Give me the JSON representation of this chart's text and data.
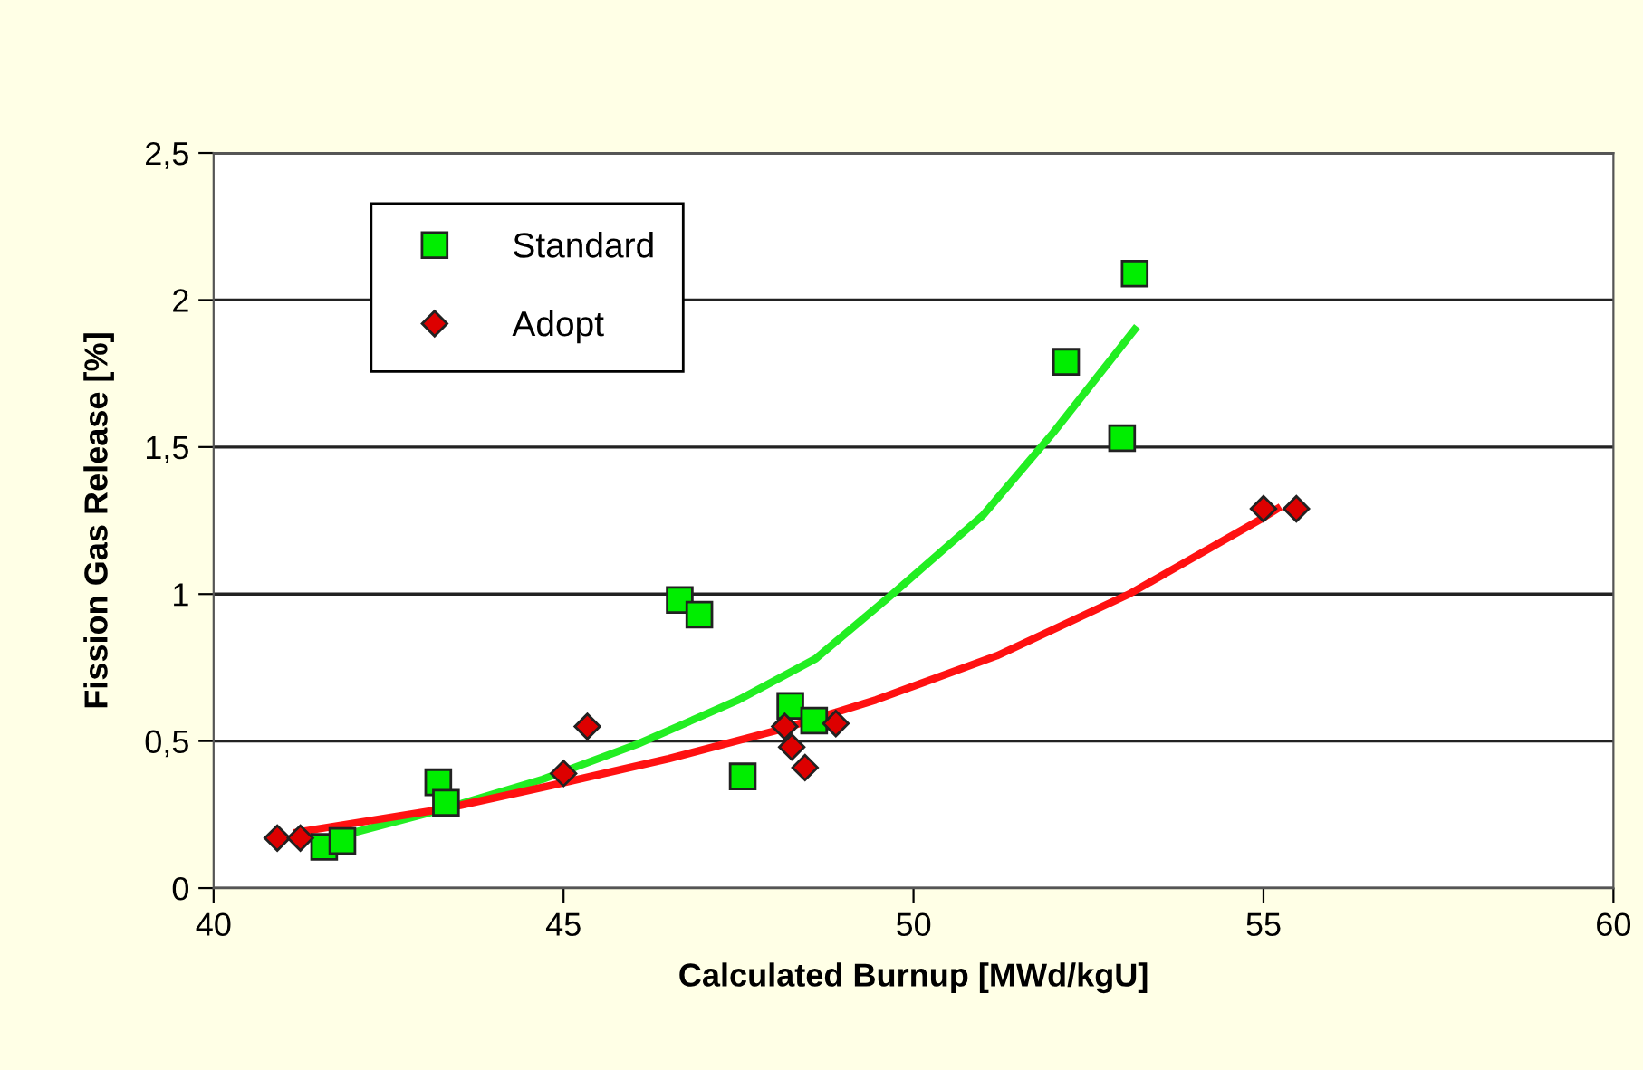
{
  "chart_data": {
    "type": "scatter",
    "xlabel": "Calculated Burnup [MWd/kgU]",
    "ylabel": "Fission Gas Release [%]",
    "xlim": [
      40,
      60
    ],
    "xticks": [
      40,
      45,
      50,
      55,
      60
    ],
    "ylim": [
      0,
      2.5
    ],
    "yticks": [
      0,
      {
        "value": 0.5,
        "label": "0,5"
      },
      1,
      {
        "value": 1.5,
        "label": "1,5"
      },
      2,
      {
        "value": 2.5,
        "label": "2,5"
      }
    ],
    "grid": "y",
    "legend": "top left",
    "series": [
      {
        "name": "Standard",
        "marker": "square",
        "color": "#00ee00",
        "x": [
          41.58,
          41.84,
          43.21,
          43.32,
          46.66,
          46.94,
          47.56,
          48.24,
          48.58,
          52.18,
          52.98,
          53.16
        ],
        "values": [
          0.14,
          0.16,
          0.36,
          0.29,
          0.98,
          0.93,
          0.38,
          0.62,
          0.57,
          1.79,
          1.53,
          2.09
        ]
      },
      {
        "name": "Adopt",
        "marker": "diamond",
        "color": "#dd0000",
        "x": [
          40.91,
          41.24,
          45.0,
          45.34,
          48.16,
          48.26,
          48.45,
          48.89,
          55.0,
          55.47
        ],
        "values": [
          0.17,
          0.17,
          0.39,
          0.55,
          0.55,
          0.48,
          0.41,
          0.56,
          1.29,
          1.29
        ]
      },
      {
        "type": "line",
        "color": "#22ee22",
        "x": [
          41.7,
          43.3,
          44.7,
          46.06,
          47.5,
          48.6,
          49.7,
          51.0,
          52.0,
          53.16
        ],
        "values": [
          0.17,
          0.27,
          0.37,
          0.49,
          0.64,
          0.78,
          1.0,
          1.27,
          1.55,
          1.9
        ]
      },
      {
        "type": "line",
        "color": "#ff1111",
        "x": [
          41.2,
          43.3,
          44.84,
          46.5,
          48.1,
          49.46,
          51.19,
          53.08,
          55.0,
          55.2
        ],
        "values": [
          0.19,
          0.27,
          0.35,
          0.44,
          0.54,
          0.64,
          0.79,
          1.0,
          1.26,
          1.29
        ]
      }
    ]
  }
}
